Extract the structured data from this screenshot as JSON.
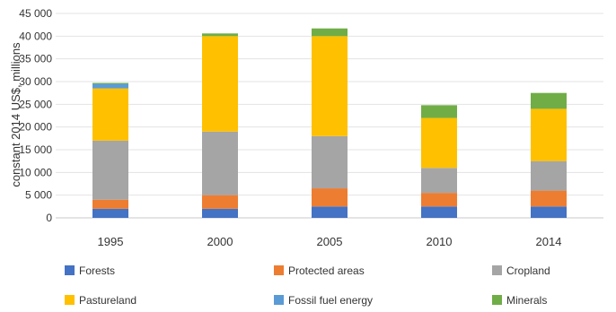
{
  "chart_data": {
    "type": "bar",
    "stacked": true,
    "categories": [
      "1995",
      "2000",
      "2005",
      "2010",
      "2014"
    ],
    "ylabel": "constant 2014 US$, millions",
    "xlabel": "",
    "ylim": [
      0,
      45000
    ],
    "yticks": [
      0,
      5000,
      10000,
      15000,
      20000,
      25000,
      30000,
      35000,
      40000,
      45000
    ],
    "ytick_labels": [
      "0",
      "5 000",
      "10 000",
      "15 000",
      "20 000",
      "25 000",
      "30 000",
      "35 000",
      "40 000",
      "45 000"
    ],
    "grid": true,
    "legend_position": "bottom",
    "series": [
      {
        "name": "Forests",
        "color": "#4472c4",
        "values": [
          2000,
          2000,
          2500,
          2500,
          2500
        ]
      },
      {
        "name": "Protected areas",
        "color": "#ed7d31",
        "values": [
          2000,
          3000,
          4000,
          3000,
          3500
        ]
      },
      {
        "name": "Cropland",
        "color": "#a5a5a5",
        "values": [
          13000,
          14000,
          11500,
          5500,
          6500
        ]
      },
      {
        "name": "Pastureland",
        "color": "#ffc000",
        "values": [
          11500,
          21000,
          22000,
          11000,
          11500
        ]
      },
      {
        "name": "Fossil fuel energy",
        "color": "#5b9bd5",
        "values": [
          1000,
          0,
          0,
          0,
          0
        ]
      },
      {
        "name": "Minerals",
        "color": "#70ad47",
        "values": [
          200,
          600,
          1700,
          2800,
          3500
        ]
      }
    ]
  }
}
